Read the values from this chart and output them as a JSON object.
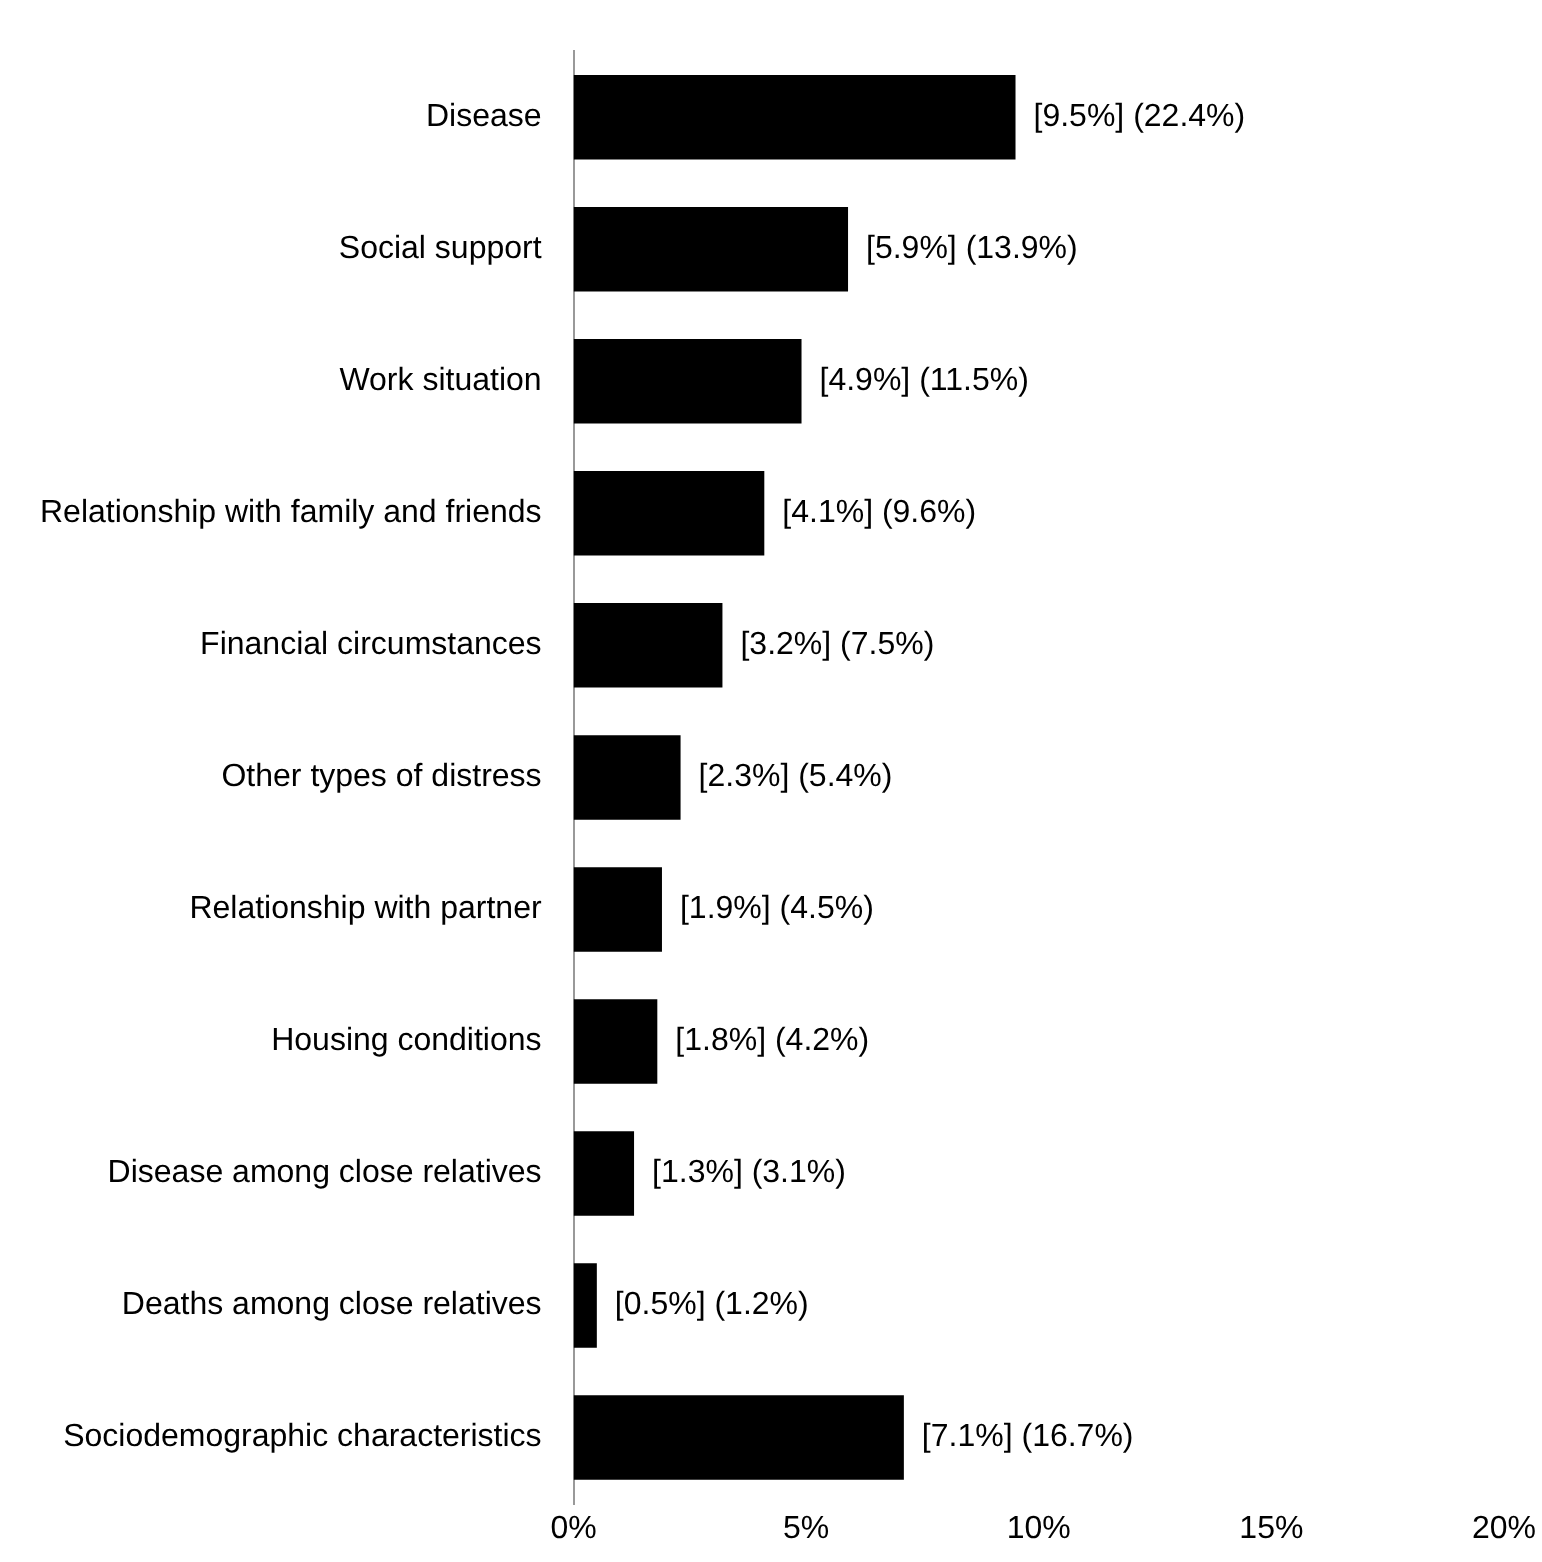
{
  "chart_data": {
    "type": "bar",
    "orientation": "horizontal",
    "categories": [
      "Disease",
      "Social support",
      "Work situation",
      "Relationship with family and friends",
      "Financial circumstances",
      "Other types of distress",
      "Relationship with partner",
      "Housing conditions",
      "Disease among close relatives",
      "Deaths among close relatives",
      "Sociodemographic characteristics"
    ],
    "values": [
      9.5,
      5.9,
      4.9,
      4.1,
      3.2,
      2.3,
      1.9,
      1.8,
      1.3,
      0.5,
      7.1
    ],
    "value_labels": [
      "[9.5%] (22.4%)",
      "[5.9%] (13.9%)",
      "[4.9%] (11.5%)",
      "[4.1%] (9.6%)",
      "[3.2%] (7.5%)",
      "[2.3%] (5.4%)",
      "[1.9%] (4.5%)",
      "[1.8%] (4.2%)",
      "[1.3%] (3.1%)",
      "[0.5%] (1.2%)",
      "[7.1%] (16.7%)"
    ],
    "color": "#000000",
    "xlim": [
      0,
      20
    ],
    "xticks": [
      {
        "value": 0,
        "label": "0%"
      },
      {
        "value": 5,
        "label": "5%"
      },
      {
        "value": 10,
        "label": "10%"
      },
      {
        "value": 15,
        "label": "15%"
      },
      {
        "value": 20,
        "label": "20%"
      }
    ],
    "grid": false,
    "legend": false
  }
}
